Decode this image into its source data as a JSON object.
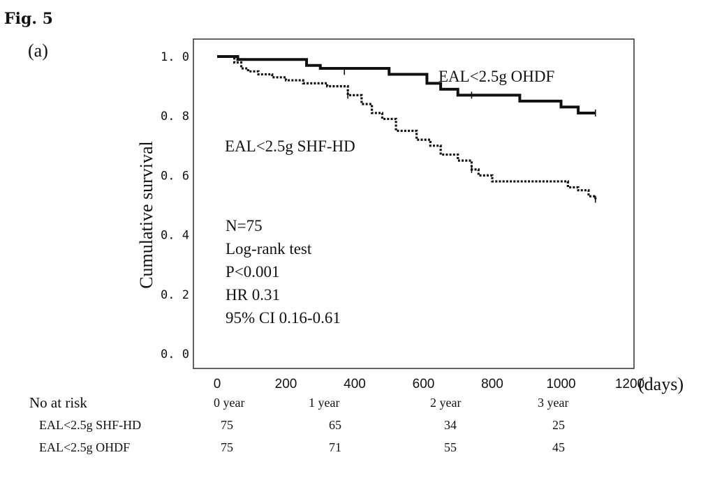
{
  "figure": {
    "label": "Fig. 5",
    "panel": "(a)"
  },
  "chart_data": {
    "type": "line",
    "ylabel": "Cumulative survival",
    "xunit": "(days)",
    "xlim": [
      0,
      1200
    ],
    "ylim": [
      0,
      1.0
    ],
    "xticks": [
      "0",
      "200",
      "400",
      "600",
      "800",
      "1000",
      "1200"
    ],
    "yticks": [
      "0. 0",
      "0. 2",
      "0. 4",
      "0. 6",
      "0. 8",
      "1. 0"
    ],
    "series": [
      {
        "name": "EAL<2.5g OHDF",
        "style": "solid",
        "x": [
          0,
          60,
          260,
          300,
          500,
          610,
          650,
          700,
          880,
          1000,
          1050,
          1100
        ],
        "y": [
          1.0,
          0.99,
          0.97,
          0.96,
          0.94,
          0.91,
          0.89,
          0.87,
          0.85,
          0.83,
          0.81,
          0.81
        ],
        "censored": [
          [
            370,
            0.95
          ],
          [
            740,
            0.87
          ],
          [
            1100,
            0.81
          ]
        ]
      },
      {
        "name": "EAL<2.5g SHF-HD",
        "style": "dotted",
        "x": [
          0,
          50,
          70,
          90,
          120,
          160,
          200,
          250,
          320,
          380,
          420,
          450,
          480,
          520,
          580,
          620,
          650,
          700,
          740,
          760,
          800,
          1000,
          1020,
          1050,
          1080,
          1100
        ],
        "y": [
          1.0,
          0.98,
          0.96,
          0.95,
          0.94,
          0.93,
          0.92,
          0.91,
          0.9,
          0.87,
          0.84,
          0.81,
          0.79,
          0.75,
          0.72,
          0.7,
          0.67,
          0.65,
          0.62,
          0.6,
          0.58,
          0.58,
          0.56,
          0.55,
          0.53,
          0.52
        ],
        "censored": [
          [
            380,
            0.87
          ],
          [
            740,
            0.62
          ],
          [
            1100,
            0.52
          ]
        ]
      }
    ],
    "annotations": [
      "N=75",
      "Log-rank test",
      "P<0.001",
      "HR 0.31",
      "95% CI 0.16-0.61"
    ]
  },
  "risk_table": {
    "title": "No at risk",
    "columns": [
      "0 year",
      "1 year",
      "2 year",
      "3 year"
    ],
    "rows": [
      {
        "label": "EAL<2.5g SHF-HD",
        "values": [
          "75",
          "65",
          "34",
          "25"
        ]
      },
      {
        "label": "EAL<2.5g OHDF",
        "values": [
          "75",
          "71",
          "55",
          "45"
        ]
      }
    ]
  }
}
